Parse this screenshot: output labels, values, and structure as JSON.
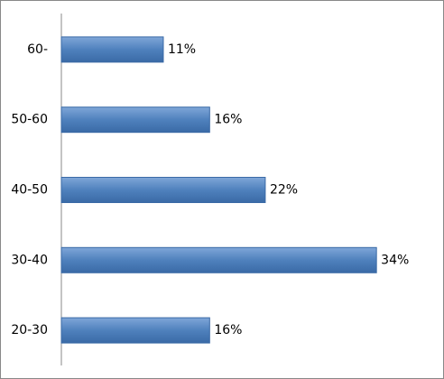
{
  "chart_data": {
    "type": "bar",
    "orientation": "horizontal",
    "categories": [
      "60-",
      "50-60",
      "40-50",
      "30-40",
      "20-30"
    ],
    "values": [
      11,
      16,
      22,
      34,
      16
    ],
    "value_labels": [
      "11%",
      "16%",
      "22%",
      "34%",
      "16%"
    ],
    "color": "#4f81bd"
  }
}
